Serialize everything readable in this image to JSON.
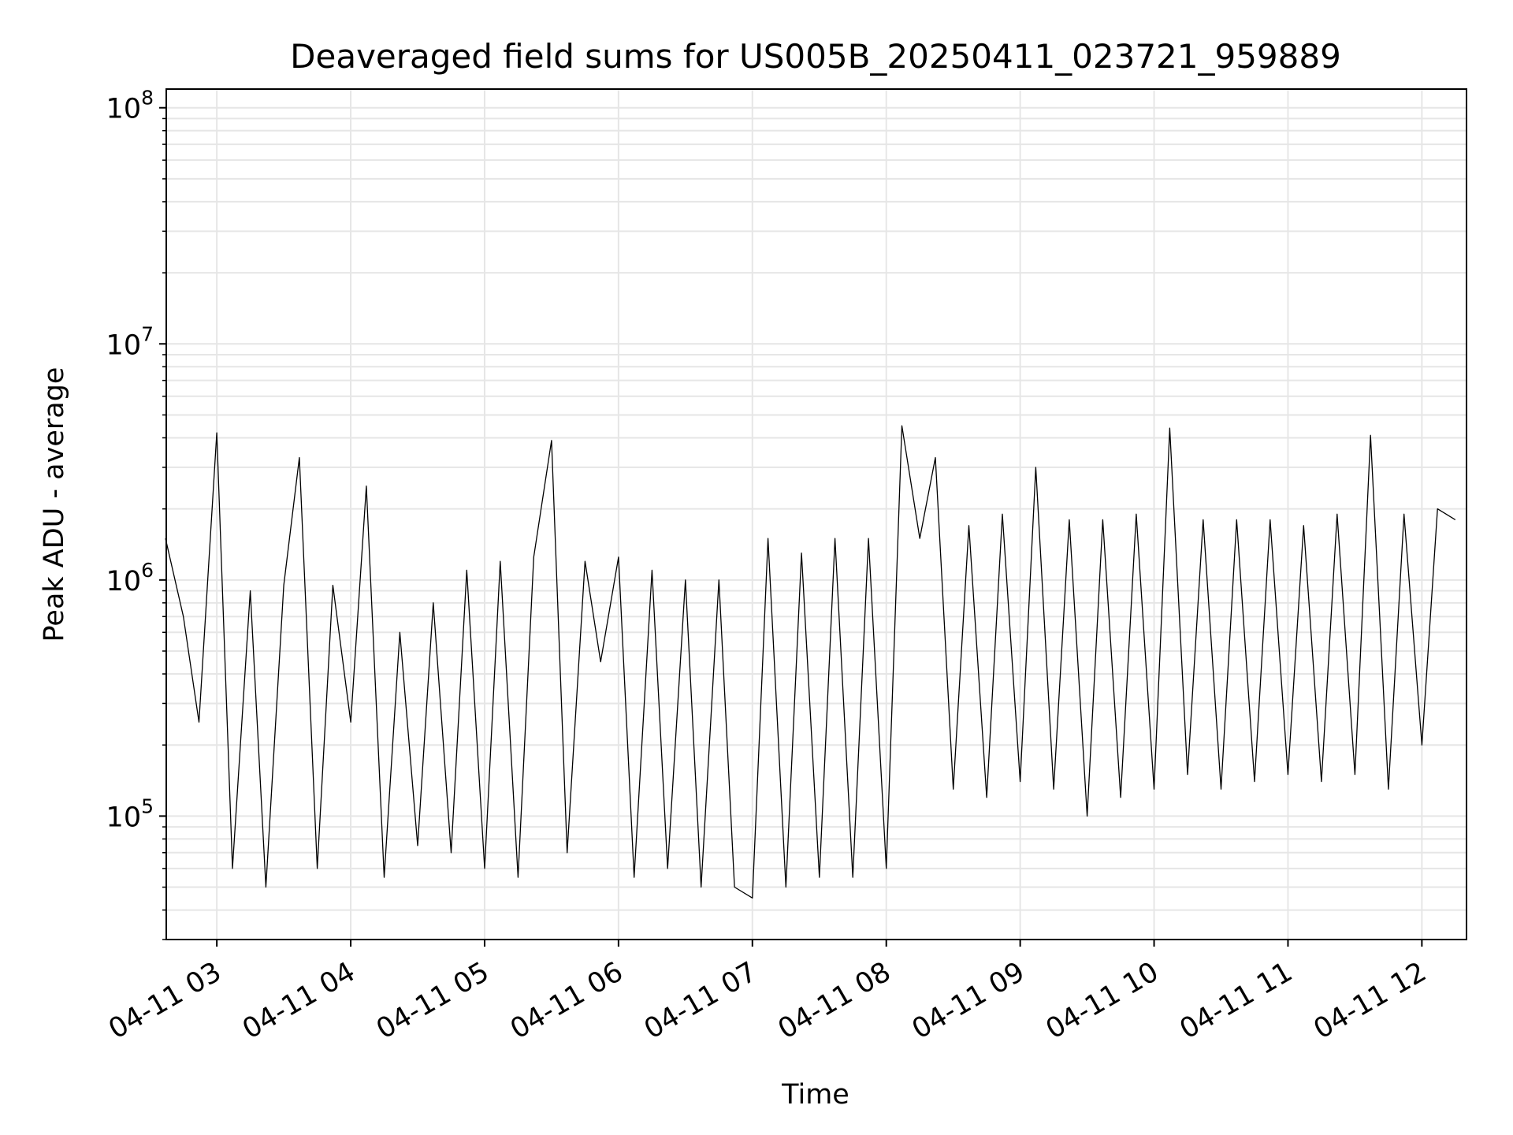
{
  "chart_data": {
    "type": "line",
    "title": "Deaveraged field sums for US005B_20250411_023721_959889",
    "xlabel": "Time",
    "ylabel": "Peak ADU - average",
    "yscale": "log",
    "ylim": [
      30000,
      120000000
    ],
    "xlim": [
      "2025-04-11 02:37:21",
      "2025-04-11 12:20:00"
    ],
    "grid": true,
    "line_color": "#000000",
    "grid_color": "#e6e6e6",
    "x_ticks": [
      {
        "value": "2025-04-11 03:00",
        "label": "04-11 03"
      },
      {
        "value": "2025-04-11 04:00",
        "label": "04-11 04"
      },
      {
        "value": "2025-04-11 05:00",
        "label": "04-11 05"
      },
      {
        "value": "2025-04-11 06:00",
        "label": "04-11 06"
      },
      {
        "value": "2025-04-11 07:00",
        "label": "04-11 07"
      },
      {
        "value": "2025-04-11 08:00",
        "label": "04-11 08"
      },
      {
        "value": "2025-04-11 09:00",
        "label": "04-11 09"
      },
      {
        "value": "2025-04-11 10:00",
        "label": "04-11 10"
      },
      {
        "value": "2025-04-11 11:00",
        "label": "04-11 11"
      },
      {
        "value": "2025-04-11 12:00",
        "label": "04-11 12"
      }
    ],
    "y_ticks": [
      {
        "value": 100000,
        "base": "10",
        "exp": "5"
      },
      {
        "value": 1000000,
        "base": "10",
        "exp": "6"
      },
      {
        "value": 10000000,
        "base": "10",
        "exp": "7"
      },
      {
        "value": 100000000,
        "base": "10",
        "exp": "8"
      }
    ],
    "series": [
      {
        "x": [
          "2025-04-11 02:37",
          "2025-04-11 02:45",
          "2025-04-11 02:52",
          "2025-04-11 03:00",
          "2025-04-11 03:07",
          "2025-04-11 03:15",
          "2025-04-11 03:22",
          "2025-04-11 03:30",
          "2025-04-11 03:37",
          "2025-04-11 03:45",
          "2025-04-11 03:52",
          "2025-04-11 04:00",
          "2025-04-11 04:07",
          "2025-04-11 04:15",
          "2025-04-11 04:22",
          "2025-04-11 04:30",
          "2025-04-11 04:37",
          "2025-04-11 04:45",
          "2025-04-11 04:52",
          "2025-04-11 05:00",
          "2025-04-11 05:07",
          "2025-04-11 05:15",
          "2025-04-11 05:22",
          "2025-04-11 05:30",
          "2025-04-11 05:37",
          "2025-04-11 05:45",
          "2025-04-11 05:52",
          "2025-04-11 06:00",
          "2025-04-11 06:07",
          "2025-04-11 06:15",
          "2025-04-11 06:22",
          "2025-04-11 06:30",
          "2025-04-11 06:37",
          "2025-04-11 06:45",
          "2025-04-11 06:52",
          "2025-04-11 07:00",
          "2025-04-11 07:07",
          "2025-04-11 07:15",
          "2025-04-11 07:22",
          "2025-04-11 07:30",
          "2025-04-11 07:37",
          "2025-04-11 07:45",
          "2025-04-11 07:52",
          "2025-04-11 08:00",
          "2025-04-11 08:07",
          "2025-04-11 08:15",
          "2025-04-11 08:22",
          "2025-04-11 08:30",
          "2025-04-11 08:37",
          "2025-04-11 08:45",
          "2025-04-11 08:52",
          "2025-04-11 09:00",
          "2025-04-11 09:07",
          "2025-04-11 09:15",
          "2025-04-11 09:22",
          "2025-04-11 09:30",
          "2025-04-11 09:37",
          "2025-04-11 09:45",
          "2025-04-11 09:52",
          "2025-04-11 10:00",
          "2025-04-11 10:07",
          "2025-04-11 10:15",
          "2025-04-11 10:22",
          "2025-04-11 10:30",
          "2025-04-11 10:37",
          "2025-04-11 10:45",
          "2025-04-11 10:52",
          "2025-04-11 11:00",
          "2025-04-11 11:07",
          "2025-04-11 11:15",
          "2025-04-11 11:22",
          "2025-04-11 11:30",
          "2025-04-11 11:37",
          "2025-04-11 11:45",
          "2025-04-11 11:52",
          "2025-04-11 12:00",
          "2025-04-11 12:07",
          "2025-04-11 12:15"
        ],
        "y": [
          1500000,
          700000,
          250000,
          4200000,
          60000,
          900000,
          50000,
          950000,
          3300000,
          60000,
          950000,
          250000,
          2500000,
          55000,
          600000,
          75000,
          800000,
          70000,
          1100000,
          60000,
          1200000,
          55000,
          1250000,
          3900000,
          70000,
          1200000,
          450000,
          1250000,
          55000,
          1100000,
          60000,
          1000000,
          50000,
          1000000,
          50000,
          45000,
          1500000,
          50000,
          1300000,
          55000,
          1500000,
          55000,
          1500000,
          60000,
          4500000,
          1500000,
          3300000,
          130000,
          1700000,
          120000,
          1900000,
          140000,
          3000000,
          130000,
          1800000,
          100000,
          1800000,
          120000,
          1900000,
          130000,
          4400000,
          150000,
          1800000,
          130000,
          1800000,
          140000,
          1800000,
          150000,
          1700000,
          140000,
          1900000,
          150000,
          4100000,
          130000,
          1900000,
          200000,
          2000000,
          1800000
        ]
      }
    ]
  }
}
